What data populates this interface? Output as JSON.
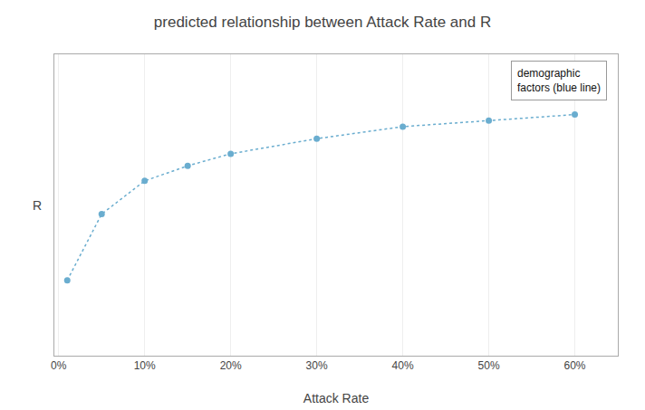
{
  "chart_data": {
    "type": "line",
    "title": "predicted relationship between Attack Rate and R",
    "xlabel": "Attack Rate",
    "ylabel": "R",
    "x": [
      0.01,
      0.05,
      0.1,
      0.15,
      0.2,
      0.3,
      0.4,
      0.5,
      0.6
    ],
    "series": [
      {
        "values": [
          0.25,
          0.47,
          0.58,
          0.63,
          0.67,
          0.72,
          0.76,
          0.78,
          0.8
        ],
        "color": "#6AADCF",
        "marker": "circle",
        "line_style": "dotted"
      }
    ],
    "xlim": [
      -0.005,
      0.65
    ],
    "ylim": [
      0.0,
      1.0
    ],
    "xticks": [
      {
        "value": 0.0,
        "label": "0%"
      },
      {
        "value": 0.1,
        "label": "10%"
      },
      {
        "value": 0.2,
        "label": "20%"
      },
      {
        "value": 0.3,
        "label": "30%"
      },
      {
        "value": 0.4,
        "label": "40%"
      },
      {
        "value": 0.5,
        "label": "50%"
      },
      {
        "value": 0.6,
        "label": "60%"
      }
    ],
    "yticks": [],
    "grid": true,
    "tick_labels": "x",
    "annotations": [
      "demographic\nfactors (blue line)"
    ]
  }
}
